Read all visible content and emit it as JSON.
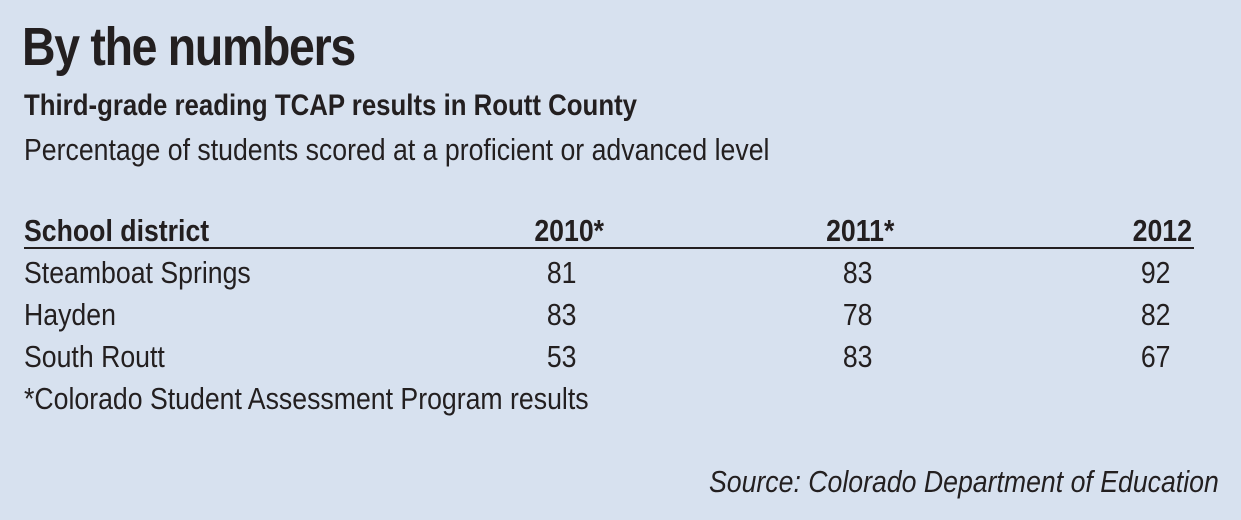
{
  "chart_data": {
    "type": "table",
    "title": "By the numbers",
    "subtitle": "Third-grade reading TCAP results in Routt County",
    "description": "Percentage of students scored at a proficient or advanced level",
    "columns": [
      "School district",
      "2010*",
      "2011*",
      "2012"
    ],
    "rows": [
      [
        "Steamboat Springs",
        "81",
        "83",
        "92"
      ],
      [
        "Hayden",
        "83",
        "78",
        "82"
      ],
      [
        "South Routt",
        "53",
        "83",
        "67"
      ]
    ],
    "footnote": "*Colorado Student Assessment Program results",
    "source": "Source: Colorado Department of Education"
  },
  "colors": {
    "background": "#d7e1ef",
    "text": "#231f20"
  }
}
